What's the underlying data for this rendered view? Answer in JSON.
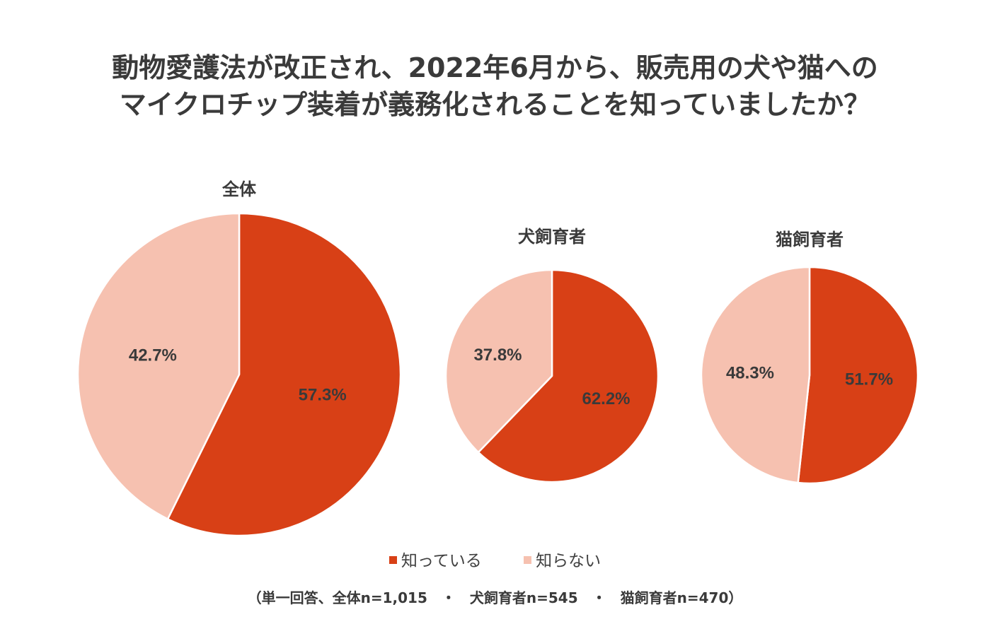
{
  "title": {
    "line1": "動物愛護法が改正され、2022年6月から、販売用の犬や猫への",
    "line2": "マイクロチップ装着が義務化されることを知っていましたか？"
  },
  "colors": {
    "known": "#D84016",
    "unknown": "#F6C1B0",
    "text": "#3a3a3a"
  },
  "chart_data": [
    {
      "type": "pie",
      "title": "全体",
      "labels": [
        "知っている",
        "知らない"
      ],
      "values": [
        57.3,
        42.7
      ],
      "value_labels": [
        "57.3%",
        "42.7%"
      ]
    },
    {
      "type": "pie",
      "title": "犬飼育者",
      "labels": [
        "知っている",
        "知らない"
      ],
      "values": [
        62.2,
        37.8
      ],
      "value_labels": [
        "62.2%",
        "37.8%"
      ]
    },
    {
      "type": "pie",
      "title": "猫飼育者",
      "labels": [
        "知っている",
        "知らない"
      ],
      "values": [
        51.7,
        48.3
      ],
      "value_labels": [
        "51.7%",
        "48.3%"
      ]
    }
  ],
  "legend": {
    "known": "知っている",
    "unknown": "知らない",
    "position": "bottom"
  },
  "note": "（単一回答、全体n=1,015　・　犬飼育者n=545　・　猫飼育者n=470）"
}
